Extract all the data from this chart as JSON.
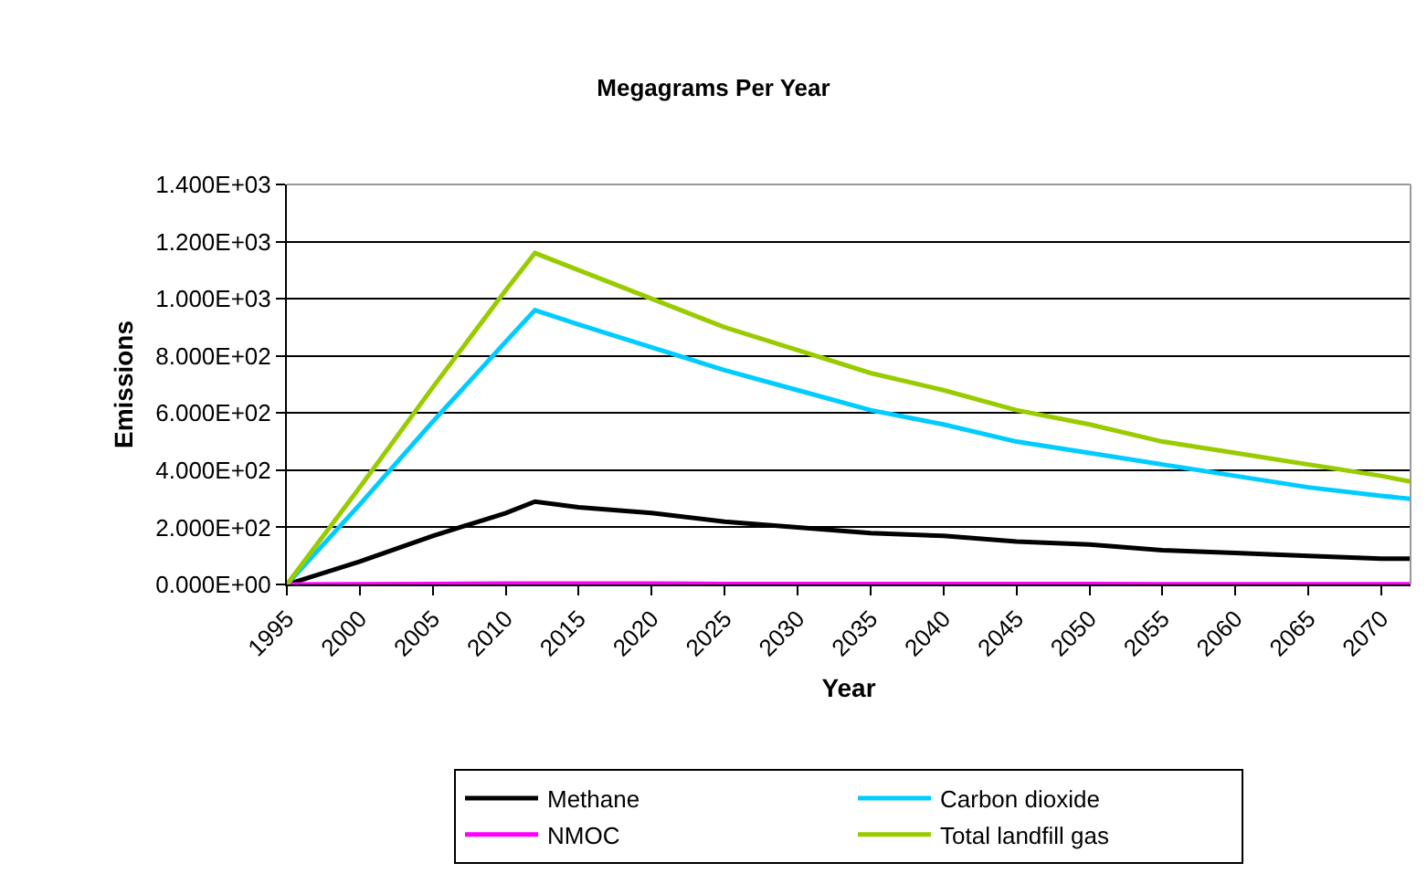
{
  "chart_data": {
    "type": "line",
    "title": "Megagrams Per Year",
    "xlabel": "Year",
    "ylabel": "Emissions",
    "x": [
      1995,
      2000,
      2005,
      2010,
      2012,
      2015,
      2020,
      2025,
      2030,
      2035,
      2040,
      2045,
      2050,
      2055,
      2060,
      2065,
      2070,
      2072
    ],
    "series": [
      {
        "name": "Methane",
        "color": "#000000",
        "values": [
          0,
          80,
          170,
          250,
          290,
          270,
          250,
          220,
          200,
          180,
          170,
          150,
          140,
          120,
          110,
          100,
          90,
          90
        ]
      },
      {
        "name": "Carbon dioxide",
        "color": "#00ccff",
        "values": [
          0,
          280,
          570,
          850,
          960,
          910,
          830,
          750,
          680,
          610,
          560,
          500,
          460,
          420,
          380,
          340,
          310,
          300
        ]
      },
      {
        "name": "NMOC",
        "color": "#ff00ff",
        "values": [
          0,
          1,
          2,
          3,
          3,
          3,
          3,
          2,
          2,
          2,
          2,
          2,
          2,
          1,
          1,
          1,
          1,
          1
        ]
      },
      {
        "name": "Total landfill gas",
        "color": "#99cc00",
        "values": [
          0,
          340,
          690,
          1030,
          1160,
          1100,
          1000,
          900,
          820,
          740,
          680,
          610,
          560,
          500,
          460,
          420,
          380,
          360
        ]
      }
    ],
    "xlim": [
      1995,
      2072
    ],
    "xticks": [
      1995,
      2000,
      2005,
      2010,
      2015,
      2020,
      2025,
      2030,
      2035,
      2040,
      2045,
      2050,
      2055,
      2060,
      2065,
      2070
    ],
    "ylim": [
      0,
      1400
    ],
    "yticks": [
      {
        "value": 0,
        "label": "0.000E+00"
      },
      {
        "value": 200,
        "label": "2.000E+02"
      },
      {
        "value": 400,
        "label": "4.000E+02"
      },
      {
        "value": 600,
        "label": "6.000E+02"
      },
      {
        "value": 800,
        "label": "8.000E+02"
      },
      {
        "value": 1000,
        "label": "1.000E+03"
      },
      {
        "value": 1200,
        "label": "1.200E+03"
      },
      {
        "value": 1400,
        "label": "1.400E+03"
      }
    ],
    "grid": "y",
    "legend": "bottom",
    "marker": "none",
    "line_style": "solid"
  }
}
